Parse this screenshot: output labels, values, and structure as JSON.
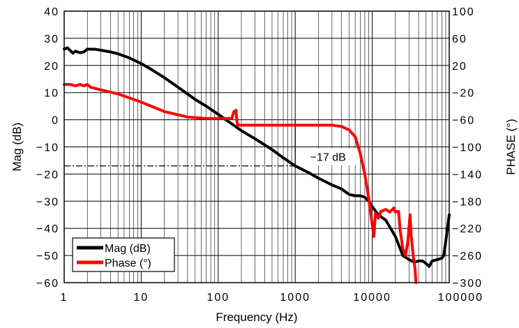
{
  "chart_data": {
    "type": "line",
    "xlabel": "Frequency (Hz)",
    "ylabel": "Mag (dB)",
    "y2label": "PHASE (°)",
    "xscale": "log",
    "xlim": [
      1,
      100000
    ],
    "ylim": [
      -60,
      40
    ],
    "y2lim": [
      -300,
      100
    ],
    "grid": true,
    "legend_position": "bottom-left",
    "x_tick_labels": [
      "1",
      "10",
      "100",
      "1000",
      "10000",
      "100000"
    ],
    "y_tick_labels": [
      "40",
      "30",
      "20",
      "10",
      "0",
      "-10",
      "-20",
      "-30",
      "-40",
      "-50",
      "-60"
    ],
    "y2_tick_labels": [
      "100",
      "60",
      "20",
      "-20",
      "-60",
      "-100",
      "-140",
      "-180",
      "-220",
      "-260",
      "-300"
    ],
    "series": [
      {
        "name": "Mag (dB)",
        "color": "#000000",
        "axis": "left",
        "points": [
          [
            1,
            26
          ],
          [
            1.1,
            26.5
          ],
          [
            1.2,
            25.5
          ],
          [
            1.3,
            24.5
          ],
          [
            1.4,
            25.3
          ],
          [
            1.6,
            24.7
          ],
          [
            1.8,
            25
          ],
          [
            2,
            26
          ],
          [
            2.5,
            26
          ],
          [
            3,
            25.6
          ],
          [
            4,
            25
          ],
          [
            5,
            24.3
          ],
          [
            7,
            22.8
          ],
          [
            10,
            20.7
          ],
          [
            14,
            18.3
          ],
          [
            20,
            15.5
          ],
          [
            30,
            12
          ],
          [
            50,
            7.5
          ],
          [
            70,
            5
          ],
          [
            100,
            2
          ],
          [
            150,
            -1.5
          ],
          [
            200,
            -4
          ],
          [
            300,
            -7
          ],
          [
            500,
            -11
          ],
          [
            700,
            -14
          ],
          [
            1000,
            -17
          ],
          [
            1500,
            -19.5
          ],
          [
            2000,
            -21.5
          ],
          [
            3000,
            -24
          ],
          [
            4000,
            -25.5
          ],
          [
            5000,
            -27.5
          ],
          [
            6000,
            -28
          ],
          [
            7000,
            -28
          ],
          [
            8000,
            -28.5
          ],
          [
            9000,
            -30
          ],
          [
            10000,
            -32
          ],
          [
            12000,
            -35
          ],
          [
            15000,
            -37
          ],
          [
            20000,
            -43
          ],
          [
            25000,
            -50
          ],
          [
            30000,
            -51.5
          ],
          [
            35000,
            -52.5
          ],
          [
            40000,
            -52
          ],
          [
            45000,
            -52
          ],
          [
            50000,
            -53
          ],
          [
            55000,
            -54
          ],
          [
            60000,
            -52
          ],
          [
            70000,
            -51.5
          ],
          [
            80000,
            -51
          ],
          [
            85000,
            -50
          ],
          [
            90000,
            -45
          ],
          [
            100000,
            -35
          ]
        ]
      },
      {
        "name": "Phase (°)",
        "color": "#ff0000",
        "axis": "right",
        "points": [
          [
            1,
            -8
          ],
          [
            1.2,
            -8
          ],
          [
            1.4,
            -10
          ],
          [
            1.6,
            -8
          ],
          [
            1.8,
            -10
          ],
          [
            2,
            -8
          ],
          [
            2.2,
            -12
          ],
          [
            3,
            -16
          ],
          [
            5,
            -22
          ],
          [
            10,
            -34
          ],
          [
            20,
            -48
          ],
          [
            40,
            -56
          ],
          [
            70,
            -58
          ],
          [
            100,
            -58
          ],
          [
            150,
            -58
          ],
          [
            160,
            -48
          ],
          [
            170,
            -46
          ],
          [
            175,
            -62
          ],
          [
            180,
            -68
          ],
          [
            200,
            -68
          ],
          [
            500,
            -68
          ],
          [
            1000,
            -68
          ],
          [
            2000,
            -68
          ],
          [
            3000,
            -68
          ],
          [
            4000,
            -70
          ],
          [
            5000,
            -75
          ],
          [
            6000,
            -85
          ],
          [
            7000,
            -110
          ],
          [
            8000,
            -140
          ],
          [
            9000,
            -175
          ],
          [
            10000,
            -215
          ],
          [
            10500,
            -232
          ],
          [
            11000,
            -198
          ],
          [
            12000,
            -205
          ],
          [
            13000,
            -195
          ],
          [
            15000,
            -192
          ],
          [
            17000,
            -196
          ],
          [
            19000,
            -190
          ],
          [
            20000,
            -196
          ],
          [
            22000,
            -195
          ],
          [
            23000,
            -222
          ],
          [
            25000,
            -250
          ],
          [
            27000,
            -260
          ],
          [
            29000,
            -240
          ],
          [
            31000,
            -200
          ],
          [
            32000,
            -230
          ],
          [
            34000,
            -260
          ],
          [
            35000,
            -270
          ],
          [
            36000,
            -280
          ],
          [
            37000,
            -300
          ]
        ]
      }
    ],
    "annotations": [
      {
        "text": "−17 dB",
        "x": 1000,
        "y": -17
      }
    ]
  }
}
